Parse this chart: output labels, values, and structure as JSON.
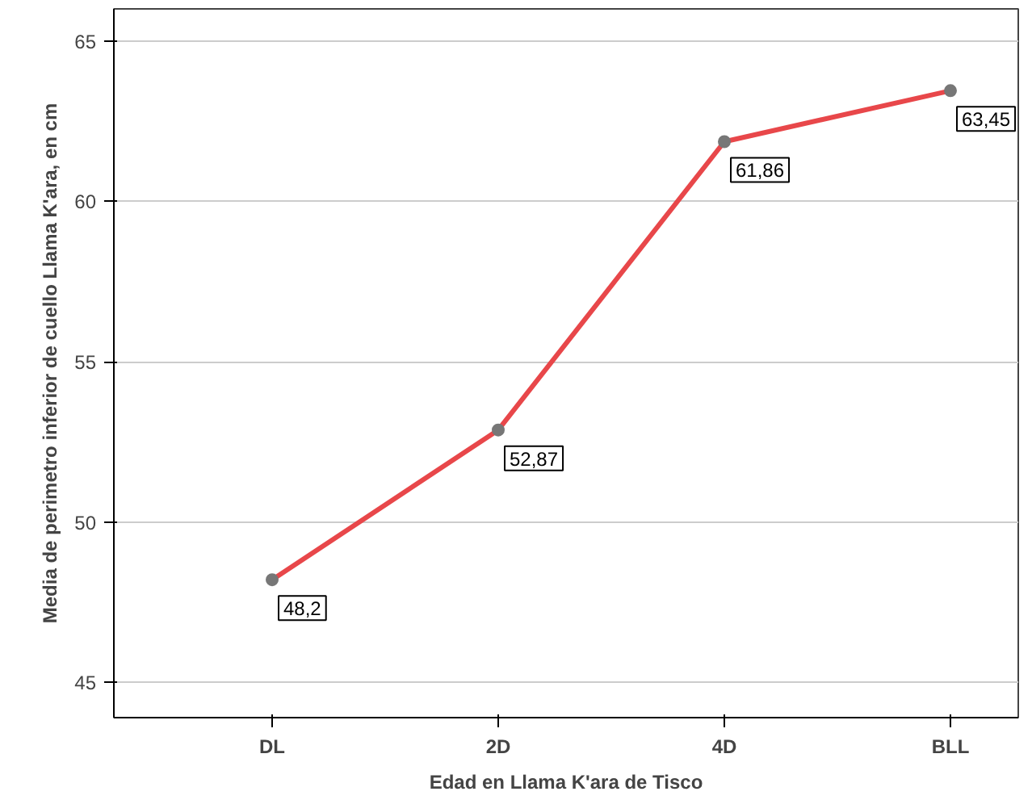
{
  "chart_data": {
    "type": "line",
    "xlabel": "Edad en Llama K'ara de Tisco",
    "ylabel": "Media de perimetro inferior de cuello Llama K'ara, en cm",
    "categories": [
      "DL",
      "2D",
      "4D",
      "BLL"
    ],
    "series": [
      {
        "color": "#e8474a",
        "values": [
          48.2,
          52.87,
          61.86,
          63.45
        ],
        "value_labels": [
          "48,2",
          "52,87",
          "61,86",
          "63,45"
        ]
      }
    ],
    "ylim": [
      43.9,
      66
    ],
    "yticks": [
      45,
      50,
      55,
      60,
      65
    ],
    "grid": "y",
    "marker": "circle",
    "line_style": "solid"
  }
}
